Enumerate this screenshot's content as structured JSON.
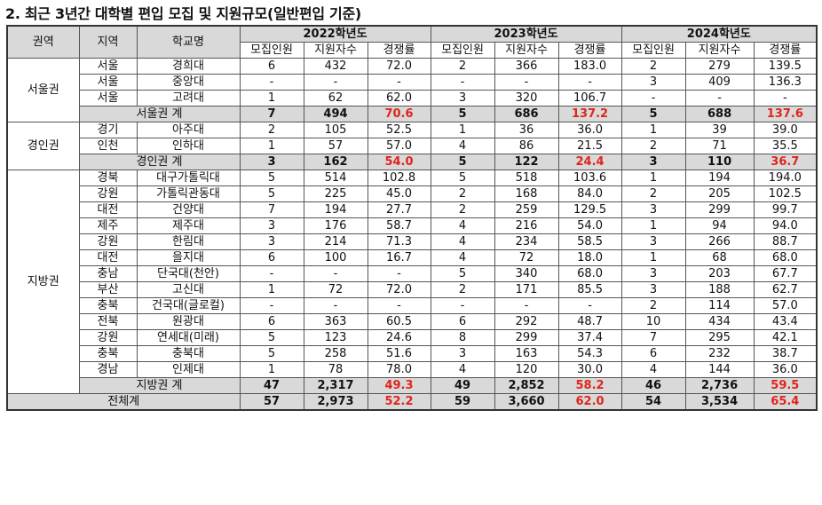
{
  "title": "2. 최근 3년간 대학별 편입 모집 및 지원규모(일반편입 기준)",
  "headers": {
    "region": "권역",
    "area": "지역",
    "school": "학교명",
    "years": [
      "2022학년도",
      "2023학년도",
      "2024학년도"
    ],
    "sub": [
      "모집인원",
      "지원자수",
      "경쟁률"
    ]
  },
  "groups": [
    {
      "region": "서울권",
      "rows": [
        {
          "area": "서울",
          "school": "경희대",
          "v": [
            "6",
            "432",
            "72.0",
            "2",
            "366",
            "183.0",
            "2",
            "279",
            "139.5"
          ]
        },
        {
          "area": "서울",
          "school": "중앙대",
          "v": [
            "-",
            "-",
            "-",
            "-",
            "-",
            "-",
            "3",
            "409",
            "136.3"
          ]
        },
        {
          "area": "서울",
          "school": "고려대",
          "v": [
            "1",
            "62",
            "62.0",
            "3",
            "320",
            "106.7",
            "-",
            "-",
            "-"
          ]
        }
      ],
      "subtotal": {
        "label": "서울권 계",
        "v": [
          "7",
          "494",
          "70.6",
          "5",
          "686",
          "137.2",
          "5",
          "688",
          "137.6"
        ]
      }
    },
    {
      "region": "경인권",
      "rows": [
        {
          "area": "경기",
          "school": "아주대",
          "v": [
            "2",
            "105",
            "52.5",
            "1",
            "36",
            "36.0",
            "1",
            "39",
            "39.0"
          ]
        },
        {
          "area": "인천",
          "school": "인하대",
          "v": [
            "1",
            "57",
            "57.0",
            "4",
            "86",
            "21.5",
            "2",
            "71",
            "35.5"
          ]
        }
      ],
      "subtotal": {
        "label": "경인권 계",
        "v": [
          "3",
          "162",
          "54.0",
          "5",
          "122",
          "24.4",
          "3",
          "110",
          "36.7"
        ]
      }
    },
    {
      "region": "지방권",
      "rows": [
        {
          "area": "경북",
          "school": "대구가톨릭대",
          "v": [
            "5",
            "514",
            "102.8",
            "5",
            "518",
            "103.6",
            "1",
            "194",
            "194.0"
          ]
        },
        {
          "area": "강원",
          "school": "가톨릭관동대",
          "v": [
            "5",
            "225",
            "45.0",
            "2",
            "168",
            "84.0",
            "2",
            "205",
            "102.5"
          ]
        },
        {
          "area": "대전",
          "school": "건양대",
          "v": [
            "7",
            "194",
            "27.7",
            "2",
            "259",
            "129.5",
            "3",
            "299",
            "99.7"
          ]
        },
        {
          "area": "제주",
          "school": "제주대",
          "v": [
            "3",
            "176",
            "58.7",
            "4",
            "216",
            "54.0",
            "1",
            "94",
            "94.0"
          ]
        },
        {
          "area": "강원",
          "school": "한림대",
          "v": [
            "3",
            "214",
            "71.3",
            "4",
            "234",
            "58.5",
            "3",
            "266",
            "88.7"
          ]
        },
        {
          "area": "대전",
          "school": "을지대",
          "v": [
            "6",
            "100",
            "16.7",
            "4",
            "72",
            "18.0",
            "1",
            "68",
            "68.0"
          ]
        },
        {
          "area": "충남",
          "school": "단국대(천안)",
          "v": [
            "-",
            "-",
            "-",
            "5",
            "340",
            "68.0",
            "3",
            "203",
            "67.7"
          ]
        },
        {
          "area": "부산",
          "school": "고신대",
          "v": [
            "1",
            "72",
            "72.0",
            "2",
            "171",
            "85.5",
            "3",
            "188",
            "62.7"
          ]
        },
        {
          "area": "충북",
          "school": "건국대(글로컬)",
          "v": [
            "-",
            "-",
            "-",
            "-",
            "-",
            "-",
            "2",
            "114",
            "57.0"
          ]
        },
        {
          "area": "전북",
          "school": "원광대",
          "v": [
            "6",
            "363",
            "60.5",
            "6",
            "292",
            "48.7",
            "10",
            "434",
            "43.4"
          ]
        },
        {
          "area": "강원",
          "school": "연세대(미래)",
          "v": [
            "5",
            "123",
            "24.6",
            "8",
            "299",
            "37.4",
            "7",
            "295",
            "42.1"
          ]
        },
        {
          "area": "충북",
          "school": "충북대",
          "v": [
            "5",
            "258",
            "51.6",
            "3",
            "163",
            "54.3",
            "6",
            "232",
            "38.7"
          ]
        },
        {
          "area": "경남",
          "school": "인제대",
          "v": [
            "1",
            "78",
            "78.0",
            "4",
            "120",
            "30.0",
            "4",
            "144",
            "36.0"
          ]
        }
      ],
      "subtotal": {
        "label": "지방권 계",
        "v": [
          "47",
          "2,317",
          "49.3",
          "49",
          "2,852",
          "58.2",
          "46",
          "2,736",
          "59.5"
        ]
      }
    }
  ],
  "total": {
    "label": "전체계",
    "v": [
      "57",
      "2,973",
      "52.2",
      "59",
      "3,660",
      "62.0",
      "54",
      "3,534",
      "65.4"
    ]
  },
  "colors": {
    "header_bg": "#d9d9d9",
    "ratio_red": "#e0241b",
    "border": "#555555"
  }
}
